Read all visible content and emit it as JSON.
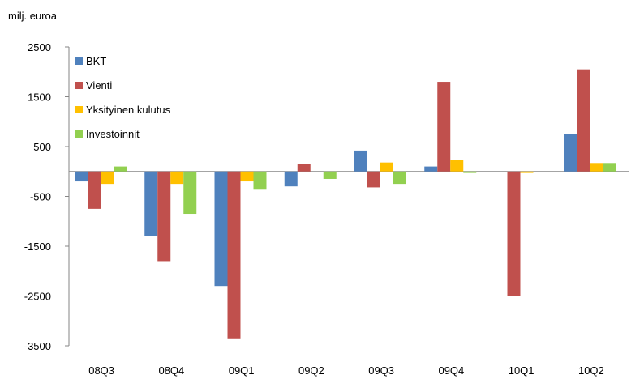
{
  "chart_data": {
    "type": "bar",
    "unit_label": "milj. euroa",
    "categories": [
      "08Q3",
      "08Q4",
      "09Q1",
      "09Q2",
      "09Q3",
      "09Q4",
      "10Q1",
      "10Q2"
    ],
    "series": [
      {
        "name": "BKT",
        "color": "#4f81bd",
        "values": [
          -200,
          -1300,
          -2300,
          -300,
          420,
          100,
          0,
          750
        ]
      },
      {
        "name": "Vienti",
        "color": "#c0504d",
        "values": [
          -750,
          -1800,
          -3350,
          150,
          -320,
          1800,
          -2500,
          2050
        ]
      },
      {
        "name": "Yksityinen kulutus",
        "color": "#ffc000",
        "values": [
          -250,
          -250,
          -200,
          0,
          180,
          230,
          -30,
          170
        ]
      },
      {
        "name": "Investoinnit",
        "color": "#92d050",
        "values": [
          100,
          -850,
          -350,
          -150,
          -250,
          -30,
          0,
          170
        ]
      }
    ],
    "ylim": [
      -3500,
      2500
    ],
    "yticks": [
      2500,
      1500,
      500,
      -500,
      -1500,
      -2500,
      -3500
    ],
    "ytick_labels": [
      "2500",
      "1500",
      "500",
      "-500",
      "-1500",
      "-2500",
      "-3500"
    ],
    "grid": false,
    "legend_position": "top-left"
  }
}
